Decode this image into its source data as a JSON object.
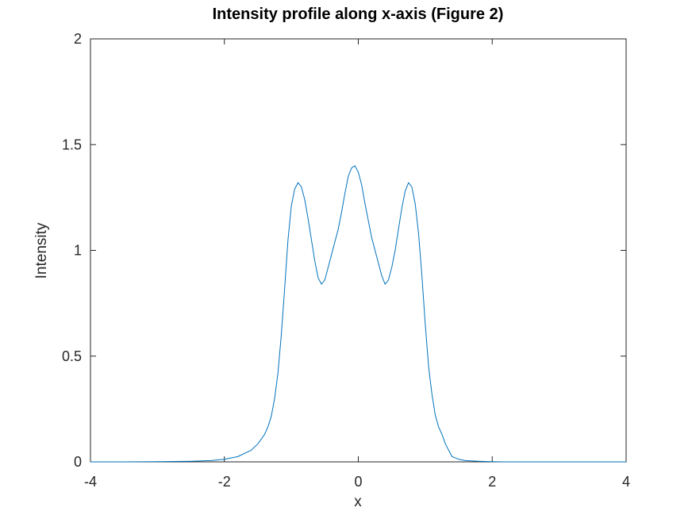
{
  "chart_data": {
    "type": "line",
    "title": "Intensity profile along x-axis (Figure 2)",
    "xlabel": "x",
    "ylabel": "Intensity",
    "xlim": [
      -4,
      4
    ],
    "ylim": [
      0,
      2
    ],
    "xticks": [
      -4,
      -2,
      0,
      2,
      4
    ],
    "xtick_labels": [
      "-4",
      "-2",
      "0",
      "2",
      "4"
    ],
    "yticks": [
      0,
      0.5,
      1,
      1.5,
      2
    ],
    "ytick_labels": [
      "0",
      "0.5",
      "1",
      "1.5",
      "2"
    ],
    "grid": false,
    "line_color": "#0072bd",
    "series": [
      {
        "x": [
          -4.0,
          -3.5,
          -3.0,
          -2.5,
          -2.2,
          -2.0,
          -1.8,
          -1.6,
          -1.5,
          -1.4,
          -1.35,
          -1.3,
          -1.25,
          -1.2,
          -1.15,
          -1.1,
          -1.05,
          -1.0,
          -0.95,
          -0.9,
          -0.85,
          -0.8,
          -0.75,
          -0.7,
          -0.65,
          -0.6,
          -0.55,
          -0.5,
          -0.45,
          -0.4,
          -0.35,
          -0.3,
          -0.25,
          -0.2,
          -0.15,
          -0.1,
          -0.05,
          0.0,
          0.05,
          0.1,
          0.15,
          0.2,
          0.25,
          0.3,
          0.35,
          0.4,
          0.45,
          0.5,
          0.55,
          0.6,
          0.65,
          0.7,
          0.75,
          0.8,
          0.85,
          0.9,
          0.95,
          1.0,
          1.05,
          1.1,
          1.15,
          1.2,
          1.25,
          1.3,
          1.35,
          1.4,
          1.5,
          1.6,
          1.8,
          2.0,
          2.2,
          2.5,
          3.0,
          3.5,
          4.0
        ],
        "y": [
          0.0,
          0.0,
          0.001,
          0.003,
          0.006,
          0.012,
          0.025,
          0.055,
          0.085,
          0.13,
          0.165,
          0.215,
          0.3,
          0.42,
          0.6,
          0.82,
          1.05,
          1.21,
          1.29,
          1.32,
          1.3,
          1.24,
          1.15,
          1.05,
          0.95,
          0.87,
          0.84,
          0.86,
          0.92,
          0.98,
          1.04,
          1.1,
          1.18,
          1.27,
          1.35,
          1.39,
          1.4,
          1.37,
          1.31,
          1.22,
          1.14,
          1.06,
          1.0,
          0.94,
          0.88,
          0.84,
          0.86,
          0.92,
          1.0,
          1.1,
          1.2,
          1.28,
          1.32,
          1.3,
          1.22,
          1.08,
          0.88,
          0.65,
          0.45,
          0.32,
          0.22,
          0.165,
          0.13,
          0.085,
          0.055,
          0.025,
          0.012,
          0.006,
          0.003,
          0.001,
          0.0,
          0.0,
          0.0,
          0.0,
          0.0
        ]
      }
    ]
  }
}
